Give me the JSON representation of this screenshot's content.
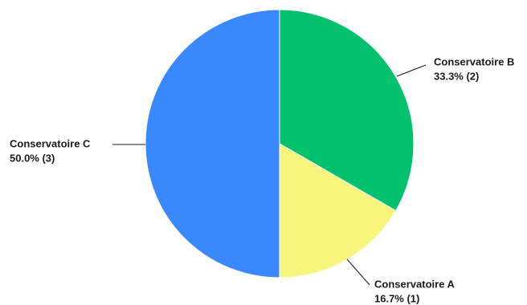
{
  "chart_data": {
    "type": "pie",
    "slices": [
      {
        "label": "Conservatoire B",
        "value": 2,
        "percent_text": "33.3% (2)",
        "color": "#02c16d"
      },
      {
        "label": "Conservatoire A",
        "value": 1,
        "percent_text": "16.7% (1)",
        "color": "#f6f57c"
      },
      {
        "label": "Conservatoire C",
        "value": 3,
        "percent_text": "50.0% (3)",
        "color": "#3a88fe"
      }
    ],
    "start_angle_deg": 0,
    "direction": "clockwise",
    "legend": "none",
    "labels": "outside-with-leader-lines"
  }
}
